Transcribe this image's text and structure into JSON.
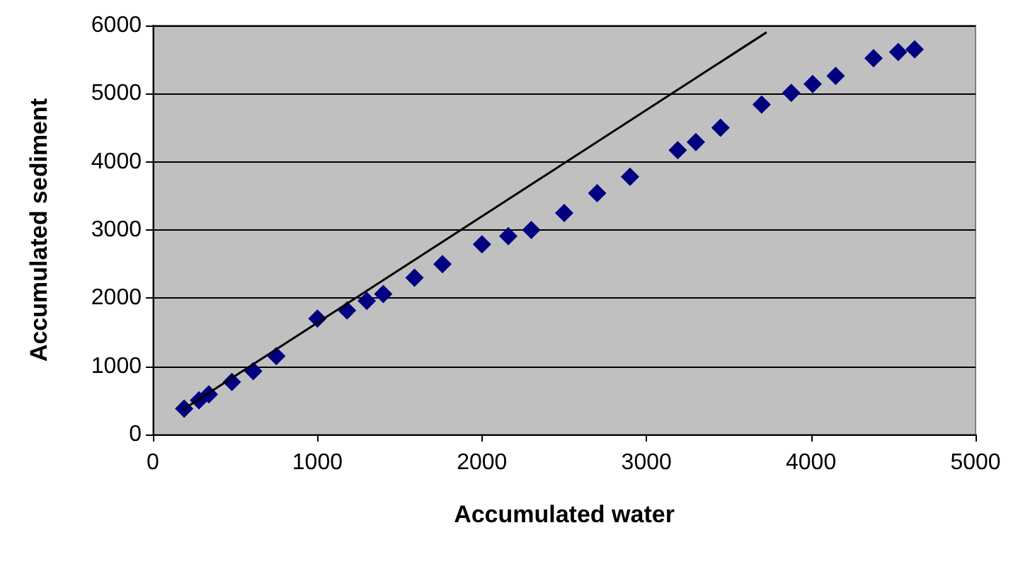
{
  "chart_data": {
    "type": "scatter",
    "xlabel": "Accumulated water",
    "ylabel": "Accumulated sediment",
    "xlim": [
      0,
      5000
    ],
    "xticks": [
      0,
      1000,
      2000,
      3000,
      4000,
      5000
    ],
    "ylim": [
      0,
      6000
    ],
    "yticks": [
      0,
      1000,
      2000,
      3000,
      4000,
      5000,
      6000
    ],
    "grid": "y",
    "marker": "diamond",
    "series": [
      {
        "color": "#000080",
        "x": [
          190,
          280,
          340,
          480,
          610,
          750,
          1000,
          1180,
          1300,
          1400,
          1590,
          1760,
          2000,
          2160,
          2300,
          2500,
          2700,
          2900,
          3190,
          3300,
          3450,
          3700,
          3880,
          4010,
          4150,
          4380,
          4530,
          4630
        ],
        "values": [
          380,
          500,
          590,
          770,
          930,
          1150,
          1700,
          1820,
          1960,
          2060,
          2300,
          2500,
          2790,
          2910,
          3000,
          3250,
          3540,
          3780,
          4170,
          4290,
          4500,
          4840,
          5010,
          5140,
          5260,
          5520,
          5610,
          5650
        ]
      },
      {
        "type": "line",
        "color": "#000000",
        "marker": "none",
        "line_style": "solid",
        "x": [
          180,
          3730
        ],
        "values": [
          360,
          5900
        ]
      }
    ]
  }
}
